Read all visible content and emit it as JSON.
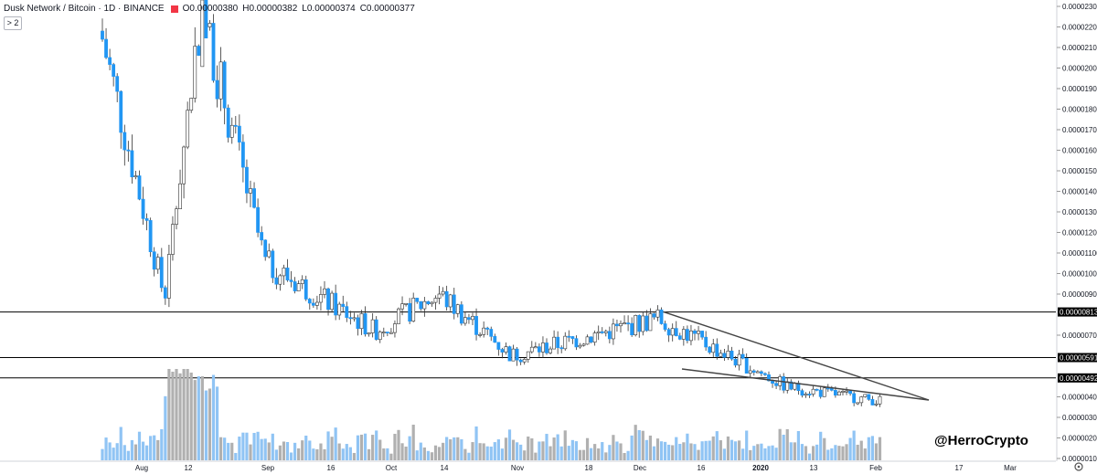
{
  "header": {
    "symbol": "Dusk Network / Bitcoin · 1D · BINANCE",
    "open": "O0.00000380",
    "high": "H0.00000382",
    "low": "L0.00000374",
    "close": "C0.00000377"
  },
  "indicator_toggle": "> 2",
  "watermark": "@HerroCrypto",
  "colors": {
    "up": "#ffffff",
    "down": "#2196f3",
    "vol_up": "#b0b0b0",
    "vol_down": "#90c4f4",
    "line": "#000000",
    "wedge": "#444444",
    "axis_text": "#131722",
    "hline_label_bg": "#000000"
  },
  "chart_data": {
    "type": "candlestick",
    "title": "Dusk Network / Bitcoin · 1D · BINANCE",
    "ylim": [
      3.5e-07,
      2.3e-05
    ],
    "y_ticks": [
      "0.00002300",
      "0.00002200",
      "0.00002100",
      "0.00002000",
      "0.00001900",
      "0.00001800",
      "0.00001700",
      "0.00001600",
      "0.00001500",
      "0.00001400",
      "0.00001300",
      "0.00001200",
      "0.00001100",
      "0.00001000",
      "0.00000900",
      "0.00000700",
      "0.00000400",
      "0.00000300",
      "0.00000200",
      "0.00000100"
    ],
    "x_ticks": [
      "Aug",
      "12",
      "Sep",
      "16",
      "Oct",
      "14",
      "Nov",
      "18",
      "Dec",
      "16",
      "2020",
      "13",
      "Feb",
      "17",
      "Mar"
    ],
    "horizontal_levels": [
      "0.00000813",
      "0.00000591",
      "0.00000492"
    ],
    "last_candle": {
      "open": 3.8e-06,
      "high": 3.82e-06,
      "low": 3.74e-06,
      "close": 3.77e-06
    },
    "trend_summary": [
      {
        "period": "late Jul",
        "close_approx": 2.18e-05
      },
      {
        "period": "early Aug",
        "close_approx": 8.8e-06
      },
      {
        "period": "mid Aug",
        "close_approx": 2.3e-05
      },
      {
        "period": "Sep",
        "close_approx": 1.05e-05
      },
      {
        "period": "Oct",
        "close_approx": 7.2e-06
      },
      {
        "period": "mid Oct",
        "close_approx": 9e-06
      },
      {
        "period": "Nov",
        "close_approx": 6e-06
      },
      {
        "period": "early Dec",
        "close_approx": 7.8e-06
      },
      {
        "period": "Jan",
        "close_approx": 4.5e-06
      },
      {
        "period": "late Jan",
        "close_approx": 3.8e-06
      }
    ]
  }
}
